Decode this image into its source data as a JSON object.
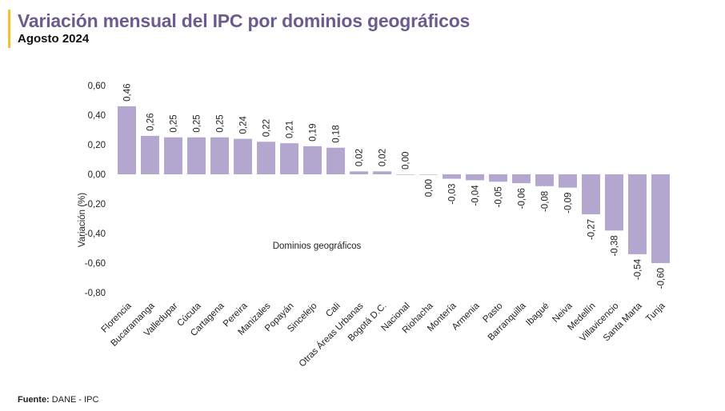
{
  "header": {
    "title": "Variación mensual del IPC por dominios geográficos",
    "subtitle": "Agosto 2024"
  },
  "footer": {
    "source_label": "Fuente:",
    "source_text": " DANE - IPC"
  },
  "colors": {
    "bar": "#B3A6CF",
    "title": "#6B5B8E",
    "accent": "#F2C230"
  },
  "chart_data": {
    "type": "bar",
    "title": "",
    "xlabel": "Dominios geográficos",
    "ylabel": "Variación (%)",
    "ylim": [
      -0.8,
      0.6
    ],
    "yticks": [
      "0,60",
      "0,40",
      "0,20",
      "0,00",
      "-0,20",
      "-0,40",
      "-0,60",
      "-0,80"
    ],
    "grid": false,
    "legend": "none",
    "categories": [
      "Florencia",
      "Bucaramanga",
      "Valledupar",
      "Cúcuta",
      "Cartagena",
      "Pereira",
      "Manizales",
      "Popayán",
      "Sincelejo",
      "Cali",
      "Otras Áreas Urbanas",
      "Bogotá D.C.",
      "Nacional",
      "Riohacha",
      "Montería",
      "Armenia",
      "Pasto",
      "Barranquilla",
      "Ibagué",
      "Neiva",
      "Medellín",
      "Villavicencio",
      "Santa Marta",
      "Tunja"
    ],
    "values": [
      0.46,
      0.26,
      0.25,
      0.25,
      0.25,
      0.24,
      0.22,
      0.21,
      0.19,
      0.18,
      0.02,
      0.02,
      0.0,
      0.0,
      -0.03,
      -0.04,
      -0.05,
      -0.06,
      -0.08,
      -0.09,
      -0.27,
      -0.38,
      -0.54,
      -0.6
    ],
    "data_labels": [
      "0,46",
      "0,26",
      "0,25",
      "0,25",
      "0,25",
      "0,24",
      "0,22",
      "0,21",
      "0,19",
      "0,18",
      "0,02",
      "0,02",
      "0,00",
      "0,00",
      "-0,03",
      "-0,04",
      "-0,05",
      "-0,06",
      "-0,08",
      "-0,09",
      "-0,27",
      "-0,38",
      "-0,54",
      "-0,60"
    ]
  }
}
